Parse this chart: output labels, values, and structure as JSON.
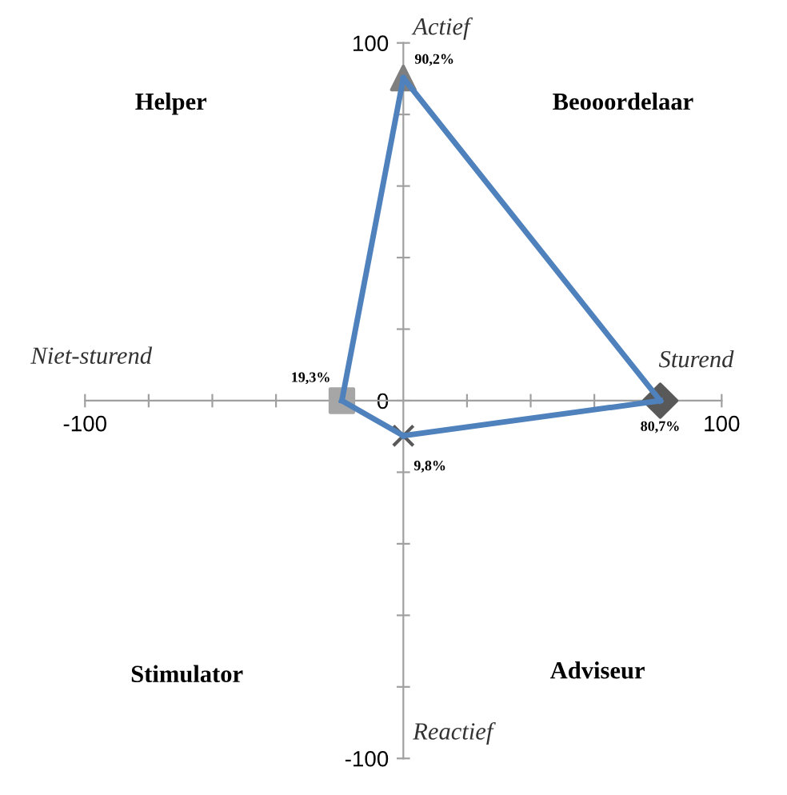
{
  "chart_data": {
    "type": "line",
    "xlim": [
      -100,
      100
    ],
    "ylim": [
      -100,
      100
    ],
    "xticks": [
      {
        "value": -100,
        "label": "-100"
      },
      {
        "value": -80,
        "label": null
      },
      {
        "value": -60,
        "label": null
      },
      {
        "value": -40,
        "label": null
      },
      {
        "value": -20,
        "label": null
      },
      {
        "value": 20,
        "label": null
      },
      {
        "value": 40,
        "label": null
      },
      {
        "value": 60,
        "label": null
      },
      {
        "value": 80,
        "label": null
      },
      100
    ],
    "yticks": [
      {
        "value": -100,
        "label": "-100"
      },
      {
        "value": -80,
        "label": null
      },
      {
        "value": -60,
        "label": null
      },
      {
        "value": -40,
        "label": null
      },
      {
        "value": -20,
        "label": null
      },
      0,
      {
        "value": 20,
        "label": null
      },
      {
        "value": 40,
        "label": null
      },
      {
        "value": 60,
        "label": null
      },
      {
        "value": 80,
        "label": null
      },
      100
    ],
    "series": [
      {
        "color": "#4f81bd",
        "x": [
          80.7,
          0
        ],
        "values": [
          0,
          -9.8
        ]
      },
      {
        "color": "#4f81bd",
        "x": [
          0,
          -19.3
        ],
        "values": [
          -9.8,
          0
        ]
      },
      {
        "color": "#4f81bd",
        "x": [
          -19.3,
          0
        ],
        "values": [
          0,
          90.2
        ]
      },
      {
        "color": "#4f81bd",
        "x": [
          0,
          80.7
        ],
        "values": [
          90.2,
          0
        ]
      },
      {
        "type": "scatter",
        "color": "#7f7f7f",
        "x": [
          0
        ],
        "values": [
          90.2
        ],
        "marker": "triangle"
      },
      {
        "type": "scatter",
        "color": "#595959",
        "x": [
          80.7
        ],
        "values": [
          0
        ],
        "marker": "diamond"
      },
      {
        "type": "scatter",
        "color": "#595959",
        "x": [
          0
        ],
        "values": [
          -9.8
        ],
        "marker": "cross"
      },
      {
        "type": "scatter",
        "color": "#a6a6a6",
        "x": [
          -19.3
        ],
        "values": [
          0
        ],
        "marker": "square"
      }
    ],
    "annotations": [
      "Actief",
      "Sturend",
      "Niet-sturend",
      "Reactief",
      "Helper",
      "Beooordelaar",
      "Stimulator",
      "Adviseur",
      {
        "text": "90,2%",
        "x": 0,
        "y": 90.2
      },
      {
        "text": "80,7%",
        "x": 80.7,
        "y": 0
      },
      {
        "text": "9,8%",
        "x": 0,
        "y": -9.8
      },
      {
        "text": "19,3%",
        "x": -19.3,
        "y": 0
      }
    ]
  }
}
